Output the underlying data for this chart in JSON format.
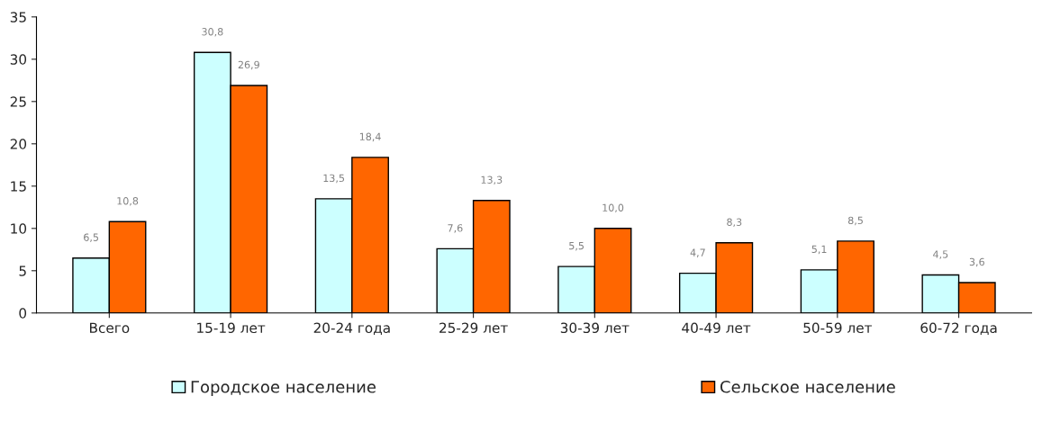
{
  "chart_data": {
    "type": "bar",
    "categories": [
      "Всего",
      "15-19 лет",
      "20-24 года",
      "25-29 лет",
      "30-39 лет",
      "40-49 лет",
      "50-59 лет",
      "60-72 года"
    ],
    "series": [
      {
        "name": "Городское население",
        "color": "#ccffff",
        "values": [
          6.5,
          30.8,
          13.5,
          7.6,
          5.5,
          4.7,
          5.1,
          4.5
        ],
        "value_labels": [
          "6,5",
          "30,8",
          "13,5",
          "7,6",
          "5,5",
          "4,7",
          "5,1",
          "4,5"
        ]
      },
      {
        "name": "Сельское население",
        "color": "#ff6600",
        "values": [
          10.8,
          26.9,
          18.4,
          13.3,
          10.0,
          8.3,
          8.5,
          3.6
        ],
        "value_labels": [
          "10,8",
          "26,9",
          "18,4",
          "13,3",
          "10,0",
          "8,3",
          "8,5",
          "3,6"
        ]
      }
    ],
    "ylim": [
      0,
      35
    ],
    "yticks": [
      0,
      5,
      10,
      15,
      20,
      25,
      30,
      35
    ],
    "grid": false,
    "legend": "bottom"
  }
}
